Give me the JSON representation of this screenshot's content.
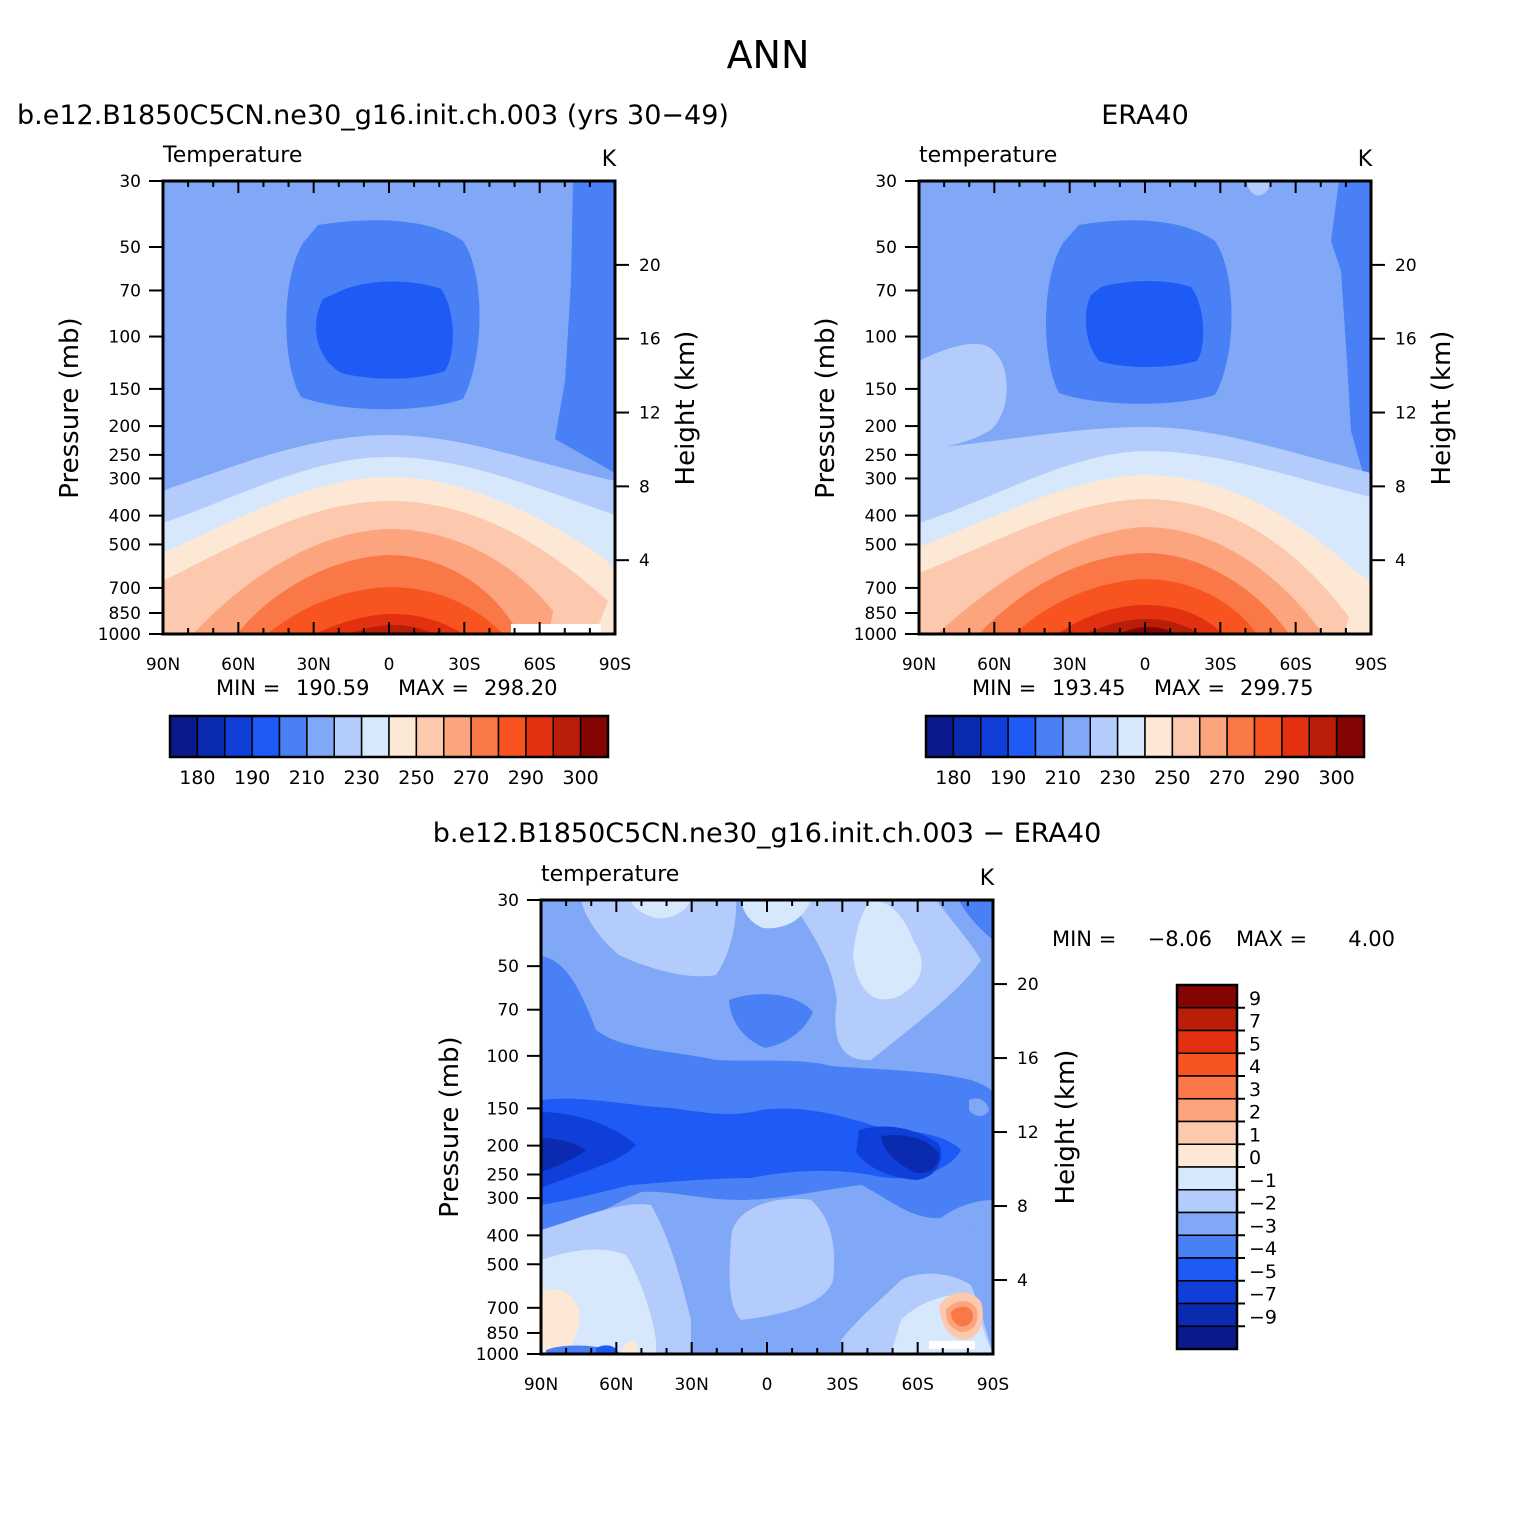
{
  "figure": {
    "title": "ANN",
    "panel_titles": {
      "model": "b.e12.B1850C5CN.ne30_g16.init.ch.003 (yrs 30−49)",
      "obs": "ERA40",
      "diff": "b.e12.B1850C5CN.ne30_g16.init.ch.003 − ERA40"
    }
  },
  "chart_data": [
    {
      "id": "model",
      "type": "heatmap",
      "title": "b.e12.B1850C5CN.ne30_g16.init.ch.003 (yrs 30−49)",
      "variable_label": "Temperature",
      "units": "K",
      "xlabel": "",
      "ylabel": "Pressure (mb)",
      "y2label": "Height (km)",
      "x_ticks": [
        "90N",
        "60N",
        "30N",
        "0",
        "30S",
        "60S",
        "90S"
      ],
      "y_ticks": [
        30,
        50,
        70,
        100,
        150,
        200,
        250,
        300,
        400,
        500,
        700,
        850,
        1000
      ],
      "y2_ticks": [
        20,
        16,
        12,
        8,
        4
      ],
      "ylim": [
        1000,
        30
      ],
      "min_label": "MIN =",
      "min": "190.59",
      "max_label": "MAX =",
      "max": "298.20",
      "colorbar": {
        "orientation": "horizontal",
        "labels": [
          "180",
          "190",
          "210",
          "230",
          "250",
          "270",
          "290",
          "300"
        ],
        "levels": [
          180,
          185,
          190,
          200,
          210,
          220,
          230,
          240,
          250,
          260,
          270,
          280,
          290,
          295,
          300
        ],
        "colors": [
          "#0a1a8c",
          "#0a2bb0",
          "#0f3fd8",
          "#1e5af5",
          "#4a80f5",
          "#80a8f7",
          "#b3ccfb",
          "#d8e8fc",
          "#fde8d6",
          "#fcc8ae",
          "#fba47e",
          "#fa7848",
          "#f85420",
          "#e23010",
          "#b81e08",
          "#840404"
        ]
      }
    },
    {
      "id": "obs",
      "type": "heatmap",
      "title": "ERA40",
      "variable_label": "temperature",
      "units": "K",
      "xlabel": "",
      "ylabel": "Pressure (mb)",
      "y2label": "Height (km)",
      "x_ticks": [
        "90N",
        "60N",
        "30N",
        "0",
        "30S",
        "60S",
        "90S"
      ],
      "y_ticks": [
        30,
        50,
        70,
        100,
        150,
        200,
        250,
        300,
        400,
        500,
        700,
        850,
        1000
      ],
      "y2_ticks": [
        20,
        16,
        12,
        8,
        4
      ],
      "ylim": [
        1000,
        30
      ],
      "min_label": "MIN =",
      "min": "193.45",
      "max_label": "MAX =",
      "max": "299.75",
      "colorbar": {
        "orientation": "horizontal",
        "labels": [
          "180",
          "190",
          "210",
          "230",
          "250",
          "270",
          "290",
          "300"
        ],
        "levels": [
          180,
          185,
          190,
          200,
          210,
          220,
          230,
          240,
          250,
          260,
          270,
          280,
          290,
          295,
          300
        ],
        "colors": [
          "#0a1a8c",
          "#0a2bb0",
          "#0f3fd8",
          "#1e5af5",
          "#4a80f5",
          "#80a8f7",
          "#b3ccfb",
          "#d8e8fc",
          "#fde8d6",
          "#fcc8ae",
          "#fba47e",
          "#fa7848",
          "#f85420",
          "#e23010",
          "#b81e08",
          "#840404"
        ]
      }
    },
    {
      "id": "diff",
      "type": "heatmap",
      "title": "b.e12.B1850C5CN.ne30_g16.init.ch.003 − ERA40",
      "variable_label": "temperature",
      "units": "K",
      "xlabel": "",
      "ylabel": "Pressure (mb)",
      "y2label": "Height (km)",
      "x_ticks": [
        "90N",
        "60N",
        "30N",
        "0",
        "30S",
        "60S",
        "90S"
      ],
      "y_ticks": [
        30,
        50,
        70,
        100,
        150,
        200,
        250,
        300,
        400,
        500,
        700,
        850,
        1000
      ],
      "y2_ticks": [
        20,
        16,
        12,
        8,
        4
      ],
      "ylim": [
        1000,
        30
      ],
      "min_label": "MIN =",
      "min": "−8.06",
      "max_label": "MAX =",
      "max": "4.00",
      "colorbar": {
        "orientation": "vertical",
        "labels": [
          "9",
          "7",
          "5",
          "4",
          "3",
          "2",
          "1",
          "0",
          "−1",
          "−2",
          "−3",
          "−4",
          "−5",
          "−7",
          "−9"
        ],
        "levels": [
          9,
          7,
          5,
          4,
          3,
          2,
          1,
          0,
          -1,
          -2,
          -3,
          -4,
          -5,
          -7,
          -9
        ],
        "colors": [
          "#840404",
          "#b81e08",
          "#e23010",
          "#f85420",
          "#fa7848",
          "#fba47e",
          "#fcc8ae",
          "#fde8d6",
          "#d8e8fc",
          "#b3ccfb",
          "#80a8f7",
          "#4a80f5",
          "#1e5af5",
          "#0f3fd8",
          "#0a2bb0",
          "#0a1a8c"
        ]
      }
    }
  ]
}
